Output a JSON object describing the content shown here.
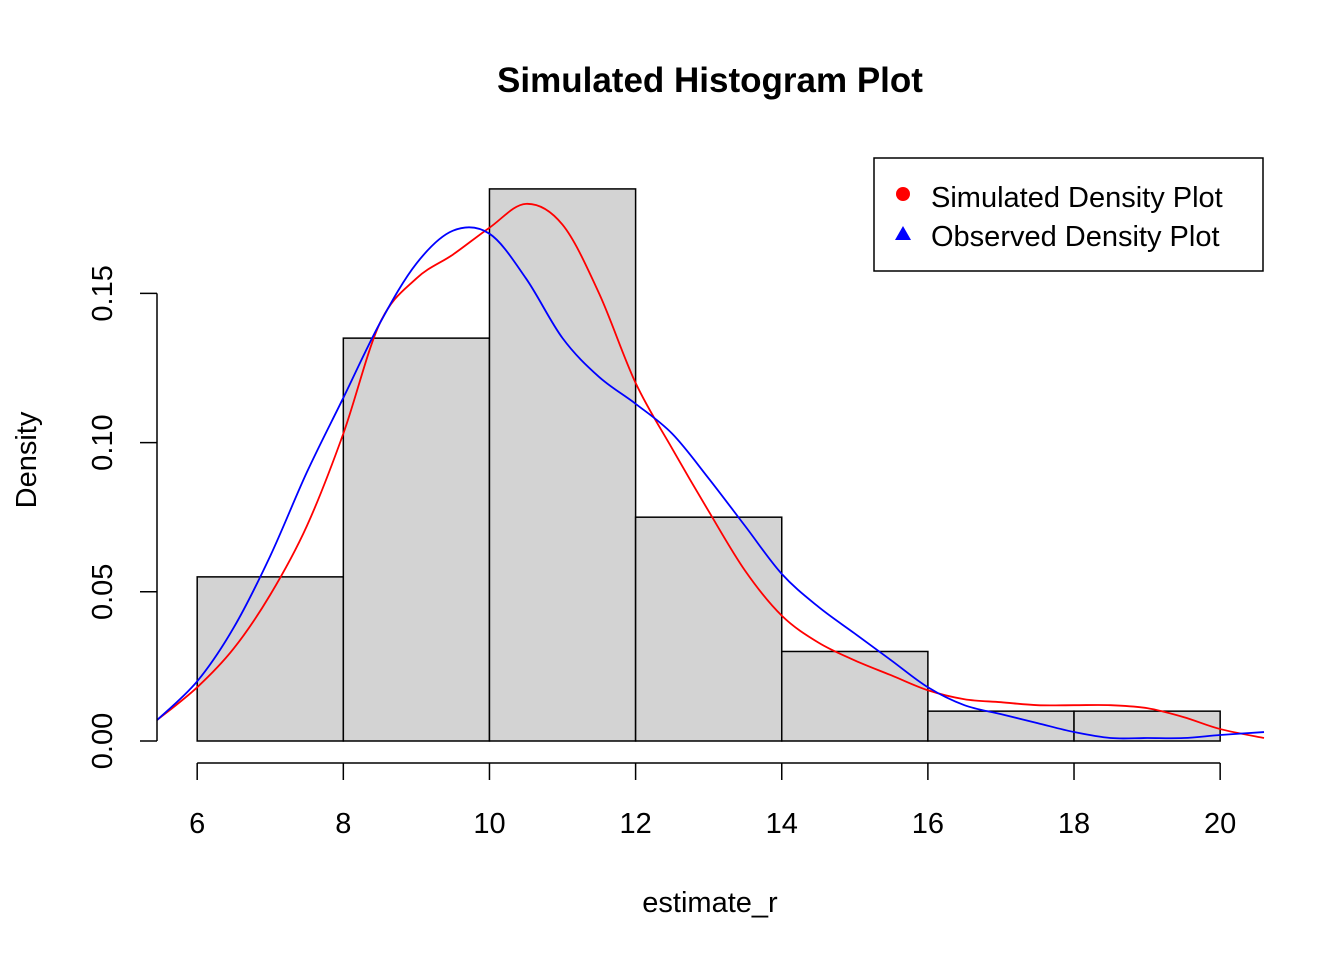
{
  "chart_data": {
    "type": "histogram",
    "title": "Simulated Histogram Plot",
    "xlabel": "estimate_r",
    "ylabel": "Density",
    "xlim": [
      5.45,
      20.6
    ],
    "ylim": [
      0,
      0.19
    ],
    "x_ticks": [
      6,
      8,
      10,
      12,
      14,
      16,
      18,
      20
    ],
    "y_ticks": [
      0.0,
      0.05,
      0.1,
      0.15
    ],
    "x_tick_labels": [
      "6",
      "8",
      "10",
      "12",
      "14",
      "16",
      "18",
      "20"
    ],
    "y_tick_labels": [
      "0.00",
      "0.05",
      "0.10",
      "0.15"
    ],
    "grid": false,
    "bins": [
      {
        "x0": 6,
        "x1": 8,
        "density": 0.055
      },
      {
        "x0": 8,
        "x1": 10,
        "density": 0.135
      },
      {
        "x0": 10,
        "x1": 12,
        "density": 0.185
      },
      {
        "x0": 12,
        "x1": 14,
        "density": 0.075
      },
      {
        "x0": 14,
        "x1": 16,
        "density": 0.03
      },
      {
        "x0": 16,
        "x1": 18,
        "density": 0.01
      },
      {
        "x0": 18,
        "x1": 20,
        "density": 0.01
      }
    ],
    "bar_color": "#d3d3d3",
    "series": [
      {
        "name": "Simulated Density Plot",
        "color": "#ff0000",
        "marker": "circle",
        "x": [
          5.45,
          6.0,
          6.5,
          7.0,
          7.5,
          8.0,
          8.5,
          9.0,
          9.5,
          10.0,
          10.5,
          11.0,
          11.5,
          12.0,
          12.5,
          13.0,
          13.5,
          14.0,
          14.5,
          15.0,
          15.5,
          16.0,
          16.5,
          17.0,
          17.5,
          18.0,
          18.5,
          19.0,
          19.5,
          20.0,
          20.6
        ],
        "y": [
          0.007,
          0.018,
          0.031,
          0.049,
          0.072,
          0.103,
          0.14,
          0.155,
          0.163,
          0.172,
          0.18,
          0.173,
          0.15,
          0.12,
          0.098,
          0.077,
          0.057,
          0.042,
          0.033,
          0.027,
          0.022,
          0.017,
          0.014,
          0.013,
          0.012,
          0.012,
          0.012,
          0.011,
          0.008,
          0.004,
          0.001
        ]
      },
      {
        "name": "Observed Density Plot",
        "color": "#0000ff",
        "marker": "triangle",
        "x": [
          5.45,
          6.0,
          6.5,
          7.0,
          7.5,
          8.0,
          8.5,
          9.0,
          9.5,
          10.0,
          10.5,
          11.0,
          11.5,
          12.0,
          12.5,
          13.0,
          13.5,
          14.0,
          14.5,
          15.0,
          15.5,
          16.0,
          16.5,
          17.0,
          17.5,
          18.0,
          18.5,
          19.0,
          19.5,
          20.0,
          20.6
        ],
        "y": [
          0.007,
          0.02,
          0.038,
          0.062,
          0.09,
          0.115,
          0.14,
          0.16,
          0.171,
          0.17,
          0.155,
          0.135,
          0.122,
          0.113,
          0.103,
          0.088,
          0.072,
          0.056,
          0.045,
          0.036,
          0.027,
          0.018,
          0.012,
          0.009,
          0.006,
          0.003,
          0.001,
          0.001,
          0.001,
          0.002,
          0.003
        ]
      }
    ],
    "legend_position": "top-right"
  }
}
